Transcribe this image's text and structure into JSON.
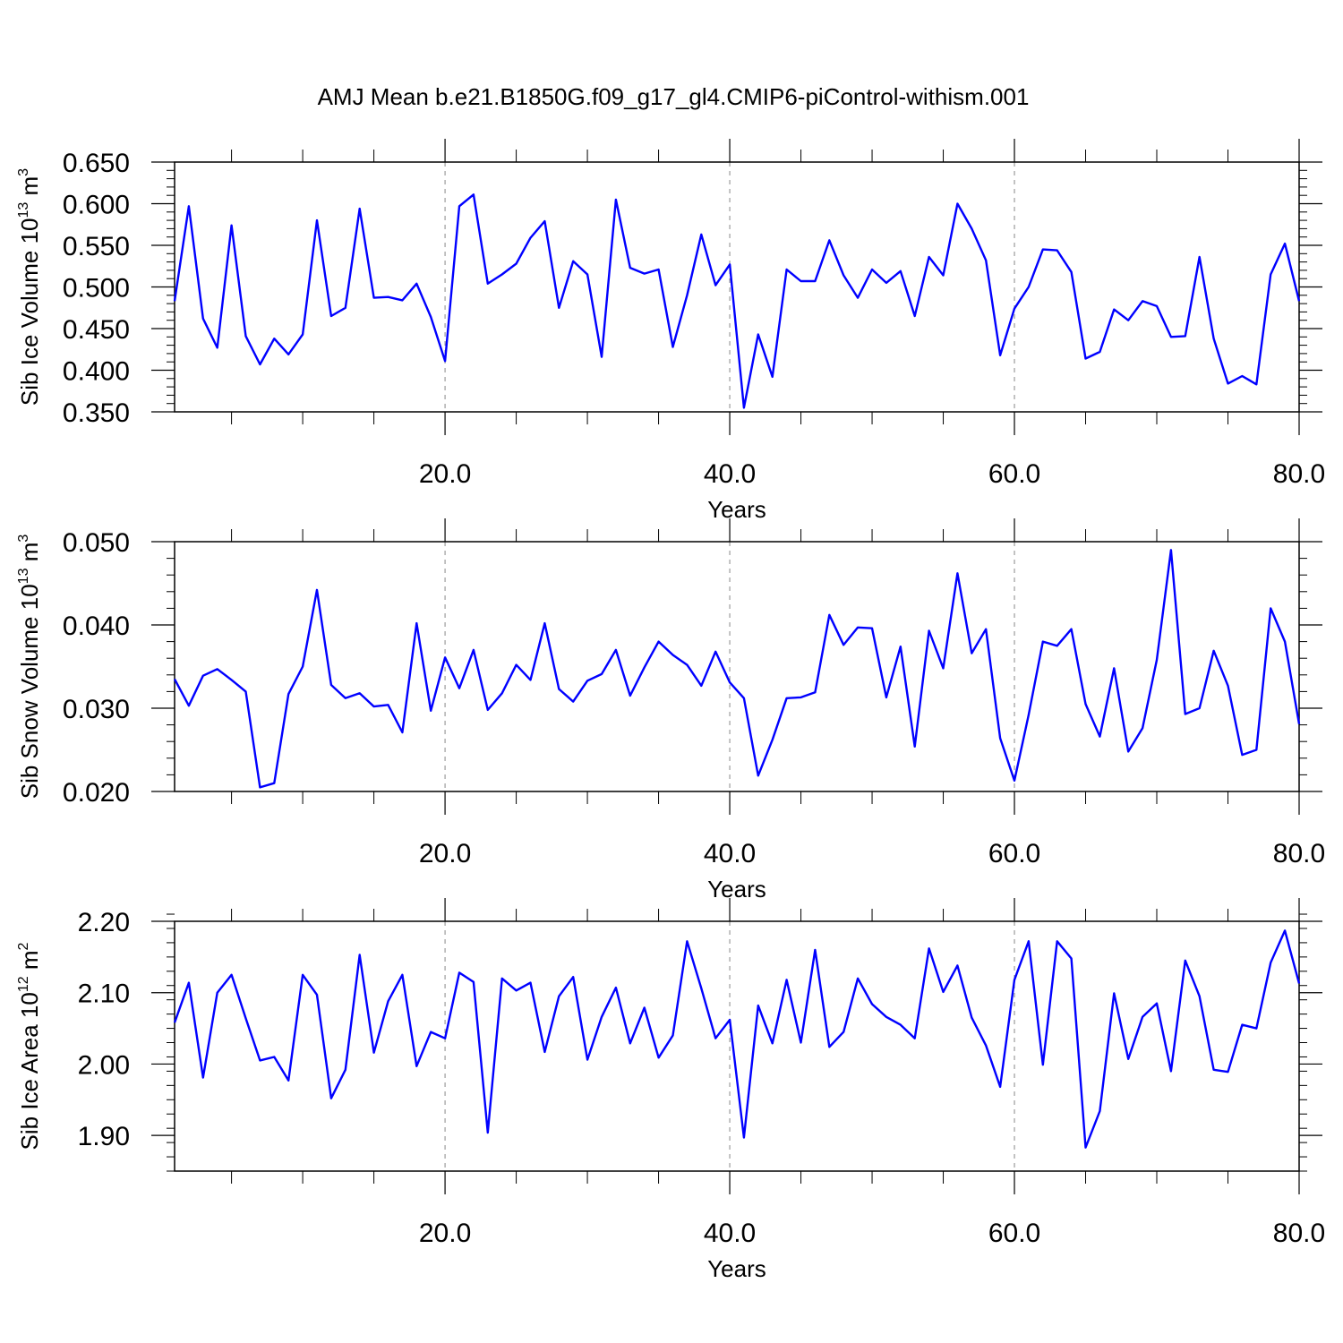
{
  "title": "AMJ Mean b.e21.B1850G.f09_g17_gl4.CMIP6-piControl-withism.001",
  "colors": {
    "series": "#0000ff",
    "axes": "#000000",
    "grid": "#888888"
  },
  "chart_data": [
    {
      "type": "line",
      "title": "",
      "xlabel": "Years",
      "ylabel_prefix": "Sib Ice Volume 10",
      "ylabel_exp": "13",
      "ylabel_unit": " m",
      "ylabel_unit_exp": "3",
      "xlim": [
        1,
        80
      ],
      "ylim": [
        0.35,
        0.65
      ],
      "xticks": [
        20,
        40,
        60,
        80
      ],
      "xtick_labels": [
        "20.0",
        "40.0",
        "60.0",
        "80.0"
      ],
      "yticks": [
        0.35,
        0.4,
        0.45,
        0.5,
        0.55,
        0.6,
        0.65
      ],
      "ytick_labels": [
        "0.350",
        "0.400",
        "0.450",
        "0.500",
        "0.550",
        "0.600",
        "0.650"
      ],
      "y_minor_step": 0.01,
      "grid_x": [
        20,
        40,
        60
      ],
      "x": [
        1,
        2,
        3,
        4,
        5,
        6,
        7,
        8,
        9,
        10,
        11,
        12,
        13,
        14,
        15,
        16,
        17,
        18,
        19,
        20,
        21,
        22,
        23,
        24,
        25,
        26,
        27,
        28,
        29,
        30,
        31,
        32,
        33,
        34,
        35,
        36,
        37,
        38,
        39,
        40,
        41,
        42,
        43,
        44,
        45,
        46,
        47,
        48,
        49,
        50,
        51,
        52,
        53,
        54,
        55,
        56,
        57,
        58,
        59,
        60,
        61,
        62,
        63,
        64,
        65,
        66,
        67,
        68,
        69,
        70,
        71,
        72,
        73,
        74,
        75,
        76,
        77,
        78,
        79,
        80
      ],
      "values": [
        0.483,
        0.597,
        0.462,
        0.427,
        0.574,
        0.441,
        0.407,
        0.438,
        0.419,
        0.443,
        0.58,
        0.465,
        0.475,
        0.594,
        0.487,
        0.488,
        0.484,
        0.504,
        0.464,
        0.411,
        0.597,
        0.611,
        0.504,
        0.515,
        0.528,
        0.559,
        0.579,
        0.475,
        0.531,
        0.515,
        0.416,
        0.605,
        0.523,
        0.516,
        0.521,
        0.428,
        0.49,
        0.563,
        0.502,
        0.527,
        0.355,
        0.443,
        0.392,
        0.521,
        0.507,
        0.507,
        0.556,
        0.514,
        0.487,
        0.521,
        0.505,
        0.519,
        0.465,
        0.536,
        0.514,
        0.6,
        0.57,
        0.532,
        0.418,
        0.474,
        0.5,
        0.545,
        0.544,
        0.518,
        0.414,
        0.422,
        0.473,
        0.46,
        0.483,
        0.477,
        0.44,
        0.441,
        0.536,
        0.438,
        0.384,
        0.393,
        0.383,
        0.515,
        0.552,
        0.483
      ]
    },
    {
      "type": "line",
      "title": "",
      "xlabel": "Years",
      "ylabel_prefix": "Sib Snow Volume 10",
      "ylabel_exp": "13",
      "ylabel_unit": " m",
      "ylabel_unit_exp": "3",
      "xlim": [
        1,
        80
      ],
      "ylim": [
        0.02,
        0.05
      ],
      "xticks": [
        20,
        40,
        60,
        80
      ],
      "xtick_labels": [
        "20.0",
        "40.0",
        "60.0",
        "80.0"
      ],
      "yticks": [
        0.02,
        0.03,
        0.04,
        0.05
      ],
      "ytick_labels": [
        "0.020",
        "0.030",
        "0.040",
        "0.050"
      ],
      "y_minor_step": 0.002,
      "grid_x": [
        20,
        40,
        60
      ],
      "x": [
        1,
        2,
        3,
        4,
        5,
        6,
        7,
        8,
        9,
        10,
        11,
        12,
        13,
        14,
        15,
        16,
        17,
        18,
        19,
        20,
        21,
        22,
        23,
        24,
        25,
        26,
        27,
        28,
        29,
        30,
        31,
        32,
        33,
        34,
        35,
        36,
        37,
        38,
        39,
        40,
        41,
        42,
        43,
        44,
        45,
        46,
        47,
        48,
        49,
        50,
        51,
        52,
        53,
        54,
        55,
        56,
        57,
        58,
        59,
        60,
        61,
        62,
        63,
        64,
        65,
        66,
        67,
        68,
        69,
        70,
        71,
        72,
        73,
        74,
        75,
        76,
        77,
        78,
        79,
        80
      ],
      "values": [
        0.0335,
        0.0303,
        0.0339,
        0.0347,
        0.0334,
        0.032,
        0.0205,
        0.021,
        0.0317,
        0.035,
        0.0442,
        0.0328,
        0.0312,
        0.0318,
        0.0302,
        0.0304,
        0.0271,
        0.0402,
        0.0297,
        0.0361,
        0.0324,
        0.037,
        0.0298,
        0.0318,
        0.0352,
        0.0334,
        0.0402,
        0.0323,
        0.0308,
        0.0333,
        0.0341,
        0.037,
        0.0315,
        0.0349,
        0.038,
        0.0364,
        0.0352,
        0.0327,
        0.0368,
        0.0331,
        0.0312,
        0.0219,
        0.0262,
        0.0312,
        0.0313,
        0.0319,
        0.0412,
        0.0376,
        0.0397,
        0.0396,
        0.0313,
        0.0374,
        0.0254,
        0.0393,
        0.0348,
        0.0462,
        0.0366,
        0.0395,
        0.0264,
        0.0213,
        0.0292,
        0.038,
        0.0375,
        0.0395,
        0.0305,
        0.0266,
        0.0348,
        0.0248,
        0.0276,
        0.0358,
        0.049,
        0.0293,
        0.03,
        0.0369,
        0.0327,
        0.0244,
        0.025,
        0.042,
        0.038,
        0.0281
      ]
    },
    {
      "type": "line",
      "title": "",
      "xlabel": "Years",
      "ylabel_prefix": "Sib Ice Area 10",
      "ylabel_exp": "12",
      "ylabel_unit": " m",
      "ylabel_unit_exp": "2",
      "xlim": [
        1,
        80
      ],
      "ylim": [
        1.85,
        2.2
      ],
      "xticks": [
        20,
        40,
        60,
        80
      ],
      "xtick_labels": [
        "20.0",
        "40.0",
        "60.0",
        "80.0"
      ],
      "yticks": [
        1.9,
        2.0,
        2.1,
        2.2
      ],
      "ytick_labels": [
        "1.90",
        "2.00",
        "2.10",
        "2.20"
      ],
      "y_minor_step": 0.02,
      "grid_x": [
        20,
        40,
        60
      ],
      "x": [
        1,
        2,
        3,
        4,
        5,
        6,
        7,
        8,
        9,
        10,
        11,
        12,
        13,
        14,
        15,
        16,
        17,
        18,
        19,
        20,
        21,
        22,
        23,
        24,
        25,
        26,
        27,
        28,
        29,
        30,
        31,
        32,
        33,
        34,
        35,
        36,
        37,
        38,
        39,
        40,
        41,
        42,
        43,
        44,
        45,
        46,
        47,
        48,
        49,
        50,
        51,
        52,
        53,
        54,
        55,
        56,
        57,
        58,
        59,
        60,
        61,
        62,
        63,
        64,
        65,
        66,
        67,
        68,
        69,
        70,
        71,
        72,
        73,
        74,
        75,
        76,
        77,
        78,
        79,
        80
      ],
      "values": [
        2.058,
        2.114,
        1.981,
        2.1,
        2.125,
        2.064,
        2.005,
        2.01,
        1.977,
        2.125,
        2.097,
        1.952,
        1.992,
        2.153,
        2.016,
        2.088,
        2.125,
        1.997,
        2.045,
        2.036,
        2.128,
        2.115,
        1.904,
        2.12,
        2.103,
        2.114,
        2.017,
        2.095,
        2.122,
        2.006,
        2.066,
        2.107,
        2.029,
        2.079,
        2.009,
        2.04,
        2.172,
        2.106,
        2.036,
        2.062,
        1.897,
        2.082,
        2.029,
        2.118,
        2.03,
        2.16,
        2.024,
        2.045,
        2.12,
        2.084,
        2.066,
        2.055,
        2.036,
        2.162,
        2.101,
        2.138,
        2.065,
        2.026,
        1.968,
        2.118,
        2.172,
        1.999,
        2.172,
        2.148,
        1.883,
        1.934,
        2.099,
        2.007,
        2.066,
        2.085,
        1.99,
        2.145,
        2.095,
        1.992,
        1.989,
        2.055,
        2.05,
        2.142,
        2.187,
        2.113
      ]
    }
  ]
}
